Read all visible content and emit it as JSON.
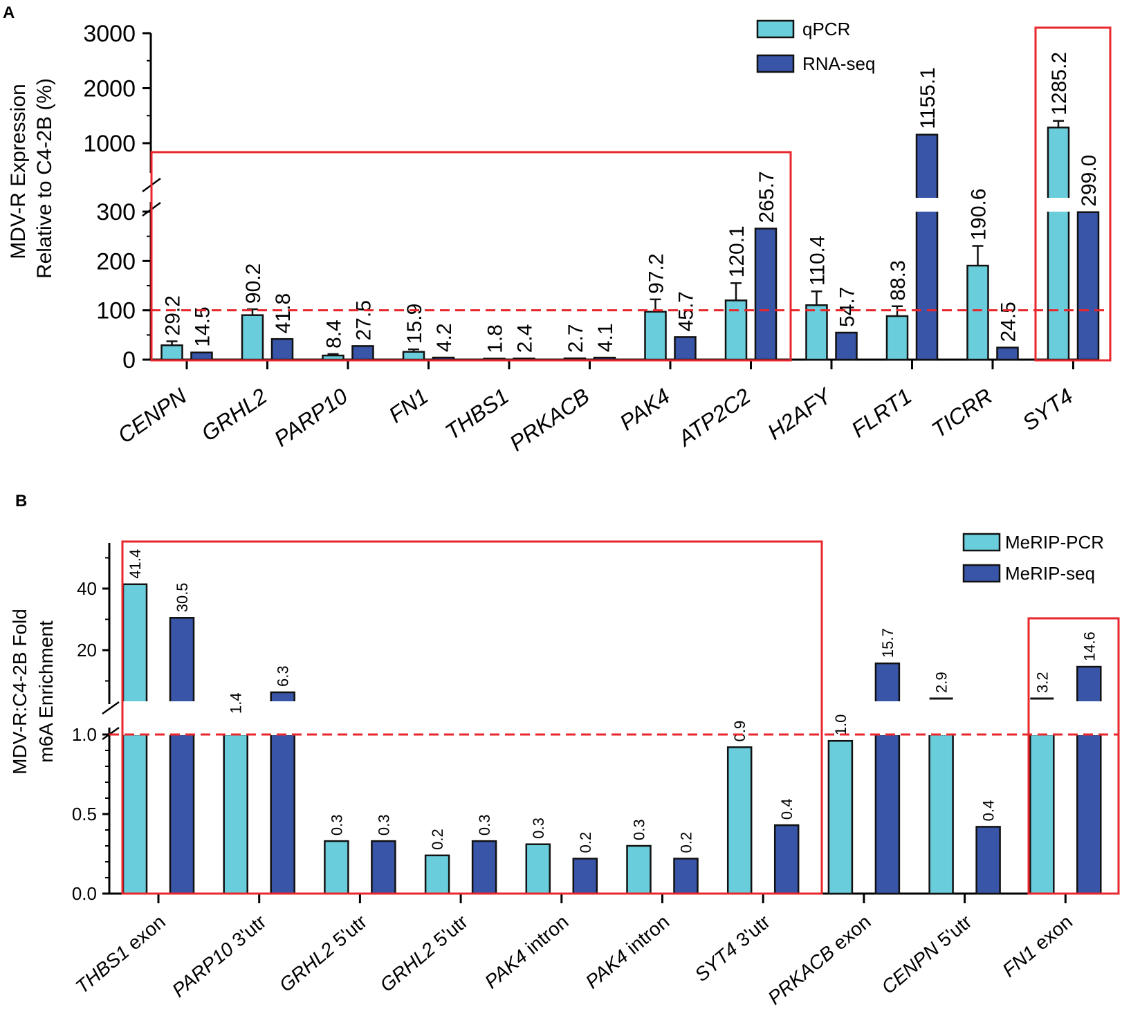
{
  "chart_data": [
    {
      "panel": "A",
      "type": "bar",
      "ylabel_line1": "MDV-R Expression",
      "ylabel_line2": "Relative to C4-2B (%)",
      "yticks": [
        "0",
        "100",
        "200",
        "300",
        "1000",
        "2000",
        "3000"
      ],
      "ylim": [
        0,
        3000
      ],
      "axis_break": [
        300,
        1000
      ],
      "reference_line": 100,
      "categories": [
        "CENPN",
        "GRHL2",
        "PARP10",
        "FN1",
        "THBS1",
        "PRKACB",
        "PAK4",
        "ATP2C2",
        "H2AFY",
        "FLRT1",
        "TICRR",
        "SYT4"
      ],
      "series": [
        {
          "name": "qPCR",
          "color": "#6acddb",
          "values": [
            29.2,
            90.2,
            8.4,
            15.9,
            1.8,
            2.7,
            97.2,
            120.1,
            110.4,
            88.3,
            190.6,
            1285.2
          ],
          "labels": [
            "29.2",
            "90.2",
            "8.4",
            "15.9",
            "1.8",
            "2.7",
            "97.2",
            "120.1",
            "110.4",
            "88.3",
            "190.6",
            "1285.2"
          ],
          "errors": [
            8,
            12,
            3,
            5,
            0,
            0,
            25,
            35,
            28,
            20,
            40,
            120
          ]
        },
        {
          "name": "RNA-seq",
          "color": "#3955a8",
          "values": [
            14.5,
            41.8,
            27.5,
            4.2,
            2.4,
            4.1,
            45.7,
            265.7,
            54.7,
            1155.1,
            24.5,
            299.0
          ],
          "labels": [
            "14.5",
            "41.8",
            "27.5",
            "4.2",
            "2.4",
            "4.1",
            "45.7",
            "265.7",
            "54.7",
            "1155.1",
            "24.5",
            "299.0"
          ]
        }
      ],
      "highlight_groups": [
        [
          0,
          7
        ],
        [
          11,
          11
        ]
      ]
    },
    {
      "panel": "B",
      "type": "bar",
      "ylabel_line1": "MDV-R:C4-2B Fold",
      "ylabel_line2": "m6A Enrichment",
      "yticks": [
        "0.0",
        "0.5",
        "1.0",
        "20",
        "40"
      ],
      "ylim": [
        0,
        50
      ],
      "axis_break": [
        1.0,
        10
      ],
      "reference_line": 1.0,
      "categories": [
        "THBS1 exon",
        "PARP10 3'utr",
        "GRHL2 5'utr",
        "GRHL2 5'utr",
        "PAK4 intron",
        "PAK4 intron",
        "SYT4 3'utr",
        "PRKACB exon",
        "CENPN 5'utr",
        "FN1 exon"
      ],
      "gene_names": [
        "THBS1",
        "PARP10",
        "GRHL2",
        "GRHL2",
        "PAK4",
        "PAK4",
        "SYT4",
        "PRKACB",
        "CENPN",
        "FN1"
      ],
      "region_names": [
        " exon",
        " 3'utr",
        " 5'utr",
        " 5'utr",
        " intron",
        " intron",
        " 3'utr",
        " exon",
        " 5'utr",
        " exon"
      ],
      "series": [
        {
          "name": "MeRIP-PCR",
          "color": "#6acddb",
          "values": [
            41.4,
            1.4,
            0.33,
            0.24,
            0.31,
            0.3,
            0.92,
            0.96,
            2.9,
            3.2
          ],
          "labels": [
            "41.4",
            "1.4",
            "0.3",
            "0.2",
            "0.3",
            "0.3",
            "0.9",
            "1.0",
            "2.9",
            "3.2"
          ]
        },
        {
          "name": "MeRIP-seq",
          "color": "#3955a8",
          "values": [
            30.5,
            6.3,
            0.33,
            0.33,
            0.22,
            0.22,
            0.43,
            15.7,
            0.42,
            14.6
          ],
          "labels": [
            "30.5",
            "6.3",
            "0.3",
            "0.3",
            "0.2",
            "0.2",
            "0.4",
            "15.7",
            "0.4",
            "14.6"
          ]
        }
      ],
      "highlight_groups": [
        [
          0,
          6
        ],
        [
          9,
          9
        ]
      ]
    }
  ]
}
